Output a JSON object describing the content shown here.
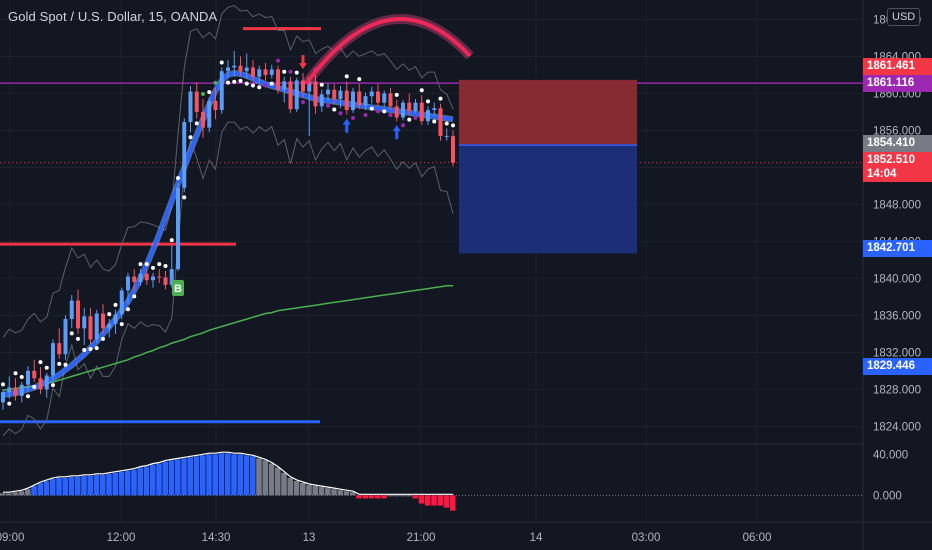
{
  "header": {
    "symbol_title": "Gold Spot / U.S. Dollar, 15, OANDA",
    "currency": "USD"
  },
  "colors": {
    "background": "#131722",
    "grid": "#1e222d",
    "axis_text": "#b2b5be",
    "up_candle": "#5b9cf6",
    "down_candle": "#f7525f",
    "band_line": "#5d606b",
    "ema_fast": "#2962ff",
    "ema_slow": "#4caf50",
    "support_line": "#2962ff",
    "resistance_line": "#f23645",
    "level_purple": "#9c27b0",
    "current_price": "#f23645",
    "stop_zone": "#8a2b32",
    "target_zone": "#1c2f7c",
    "entry_line": "#2962ff",
    "buy_signal": "#4caf50",
    "arrow_up": "#2962ff",
    "arrow_down": "#f23645",
    "histogram_up": "#2962ff",
    "histogram_gray": "#787b86",
    "histogram_down": "#ff1744"
  },
  "price_tags": [
    {
      "text": "1861.461",
      "color": "#f23645"
    },
    {
      "text": "1861.116",
      "color": "#9c27b0"
    },
    {
      "text": "1854.410",
      "color": "#787b86"
    },
    {
      "text": "1852.510",
      "sub": "14:04",
      "color": "#f23645"
    },
    {
      "text": "1842.701",
      "color": "#2962ff"
    },
    {
      "text": "1829.446",
      "color": "#2962ff"
    }
  ],
  "chart_data": [
    {
      "type": "candlestick",
      "title": "Gold Spot / U.S. Dollar, 15, OANDA",
      "y_ticks": [
        "1824.000",
        "1828.000",
        "1832.000",
        "1836.000",
        "1840.000",
        "1844.000",
        "1848.000",
        "1852.000",
        "1856.000",
        "1860.000",
        "1864.000",
        "1868.000"
      ],
      "x_ticks": [
        "09:00",
        "12:00",
        "14:30",
        "13",
        "21:00",
        "14",
        "03:00",
        "06:00"
      ],
      "ylim": [
        1822.2,
        1870.1
      ],
      "levels": {
        "resistance_upper": 1867.0,
        "resistance_lower": 1843.7,
        "support": 1824.5,
        "purple": 1861.116,
        "current": 1852.51
      },
      "position": {
        "entry": 1854.41,
        "stop": 1861.461,
        "target": 1842.701
      },
      "signal_label": "B",
      "candles": [
        [
          1826.6,
          1828.0,
          1825.8,
          1827.7
        ],
        [
          1827.7,
          1829.4,
          1827.0,
          1828.2
        ],
        [
          1828.2,
          1829.2,
          1826.8,
          1827.3
        ],
        [
          1827.3,
          1828.8,
          1826.6,
          1828.5
        ],
        [
          1828.5,
          1830.5,
          1827.8,
          1830.0
        ],
        [
          1830.0,
          1831.2,
          1828.8,
          1829.2
        ],
        [
          1829.2,
          1830.4,
          1827.5,
          1828.0
        ],
        [
          1828.0,
          1829.8,
          1827.1,
          1829.5
        ],
        [
          1829.5,
          1833.4,
          1829.0,
          1833.0
        ],
        [
          1833.0,
          1834.6,
          1831.3,
          1831.8
        ],
        [
          1831.8,
          1836.0,
          1831.2,
          1835.6
        ],
        [
          1835.6,
          1838.2,
          1834.6,
          1837.6
        ],
        [
          1837.6,
          1838.8,
          1834.0,
          1834.6
        ],
        [
          1834.6,
          1836.8,
          1832.8,
          1835.9
        ],
        [
          1835.9,
          1836.8,
          1832.9,
          1833.4
        ],
        [
          1833.4,
          1836.6,
          1833.0,
          1836.2
        ],
        [
          1836.2,
          1837.2,
          1834.0,
          1834.6
        ],
        [
          1834.6,
          1835.6,
          1833.6,
          1835.1
        ],
        [
          1835.1,
          1836.6,
          1834.0,
          1836.1
        ],
        [
          1836.1,
          1839.0,
          1835.6,
          1838.7
        ],
        [
          1838.7,
          1840.6,
          1837.2,
          1840.2
        ],
        [
          1840.2,
          1841.0,
          1838.6,
          1839.6
        ],
        [
          1839.6,
          1841.0,
          1839.2,
          1840.5
        ],
        [
          1840.5,
          1841.0,
          1839.3,
          1839.8
        ],
        [
          1839.8,
          1840.6,
          1839.0,
          1840.2
        ],
        [
          1840.2,
          1841.0,
          1839.5,
          1840.1
        ],
        [
          1840.1,
          1840.8,
          1838.8,
          1839.3
        ],
        [
          1839.3,
          1843.6,
          1839.0,
          1841.0
        ],
        [
          1841.0,
          1850.3,
          1840.8,
          1849.8
        ],
        [
          1849.8,
          1857.3,
          1849.3,
          1856.9
        ],
        [
          1856.9,
          1860.8,
          1855.8,
          1860.2
        ],
        [
          1860.2,
          1861.2,
          1857.3,
          1858.0
        ],
        [
          1858.0,
          1859.4,
          1855.2,
          1856.3
        ],
        [
          1856.3,
          1859.6,
          1855.8,
          1859.2
        ],
        [
          1859.2,
          1860.6,
          1857.2,
          1858.2
        ],
        [
          1858.2,
          1862.8,
          1857.8,
          1862.4
        ],
        [
          1862.4,
          1863.6,
          1861.7,
          1862.8
        ],
        [
          1862.8,
          1864.6,
          1861.8,
          1863.0
        ],
        [
          1863.0,
          1864.0,
          1861.9,
          1862.4
        ],
        [
          1862.4,
          1864.3,
          1861.6,
          1862.8
        ],
        [
          1862.8,
          1863.6,
          1861.4,
          1861.8
        ],
        [
          1861.8,
          1863.0,
          1861.2,
          1862.6
        ],
        [
          1862.6,
          1863.3,
          1861.4,
          1862.0
        ],
        [
          1862.0,
          1863.1,
          1861.6,
          1862.6
        ],
        [
          1862.6,
          1863.0,
          1860.0,
          1860.4
        ],
        [
          1860.4,
          1861.8,
          1859.0,
          1861.3
        ],
        [
          1861.3,
          1861.8,
          1857.9,
          1858.3
        ],
        [
          1858.3,
          1861.7,
          1858.0,
          1861.4
        ],
        [
          1861.4,
          1862.2,
          1859.6,
          1860.2
        ],
        [
          1860.2,
          1861.0,
          1855.4,
          1861.3
        ],
        [
          1861.3,
          1862.0,
          1857.8,
          1858.6
        ],
        [
          1858.6,
          1860.4,
          1858.0,
          1859.9
        ],
        [
          1859.9,
          1861.1,
          1859.2,
          1860.4
        ],
        [
          1860.4,
          1861.0,
          1858.8,
          1859.4
        ],
        [
          1859.4,
          1860.8,
          1858.4,
          1860.3
        ],
        [
          1860.3,
          1861.3,
          1857.7,
          1858.2
        ],
        [
          1858.2,
          1860.6,
          1857.9,
          1860.2
        ],
        [
          1860.2,
          1861.0,
          1858.3,
          1858.7
        ],
        [
          1858.7,
          1860.1,
          1858.2,
          1859.7
        ],
        [
          1859.7,
          1860.7,
          1858.9,
          1860.2
        ],
        [
          1860.2,
          1861.0,
          1858.6,
          1859.0
        ],
        [
          1859.0,
          1860.3,
          1858.6,
          1860.0
        ],
        [
          1860.0,
          1860.6,
          1858.2,
          1858.6
        ],
        [
          1858.6,
          1859.3,
          1857.0,
          1857.4
        ],
        [
          1857.4,
          1859.3,
          1857.1,
          1859.0
        ],
        [
          1859.0,
          1860.0,
          1857.7,
          1858.1
        ],
        [
          1858.1,
          1859.4,
          1857.9,
          1859.0
        ],
        [
          1859.0,
          1859.8,
          1856.6,
          1857.0
        ],
        [
          1857.0,
          1858.6,
          1856.6,
          1858.2
        ],
        [
          1858.2,
          1859.0,
          1857.5,
          1858.4
        ],
        [
          1858.4,
          1858.9,
          1854.9,
          1855.4
        ],
        [
          1855.4,
          1856.2,
          1854.9,
          1855.4
        ],
        [
          1855.4,
          1856.0,
          1852.1,
          1852.5
        ]
      ],
      "band_upper": [
        1833.6,
        1834.5,
        1834.1,
        1834.4,
        1835.6,
        1836.2,
        1835.3,
        1835.8,
        1838.4,
        1838.7,
        1841.2,
        1843.3,
        1842.2,
        1842.6,
        1841.2,
        1842.0,
        1841.0,
        1840.8,
        1841.5,
        1843.7,
        1845.5,
        1845.6,
        1846.1,
        1846.0,
        1845.8,
        1845.5,
        1845.2,
        1847.8,
        1855.6,
        1862.8,
        1866.7,
        1867.0,
        1866.0,
        1866.6,
        1865.9,
        1868.6,
        1869.3,
        1869.5,
        1868.9,
        1869.0,
        1868.3,
        1868.6,
        1868.2,
        1868.3,
        1866.8,
        1866.8,
        1864.7,
        1866.2,
        1865.6,
        1865.8,
        1864.3,
        1864.8,
        1865.1,
        1864.5,
        1864.9,
        1863.9,
        1864.6,
        1864.0,
        1864.3,
        1864.6,
        1864.1,
        1864.3,
        1863.5,
        1862.6,
        1863.2,
        1862.5,
        1862.9,
        1861.7,
        1862.3,
        1862.3,
        1860.4,
        1859.9,
        1858.3
      ],
      "band_lower": [
        1823.0,
        1823.7,
        1823.2,
        1823.7,
        1825.2,
        1824.8,
        1823.7,
        1824.7,
        1828.1,
        1827.2,
        1830.6,
        1832.8,
        1830.1,
        1830.8,
        1829.2,
        1830.5,
        1829.4,
        1829.4,
        1830.5,
        1833.4,
        1835.1,
        1834.6,
        1835.3,
        1834.8,
        1835.0,
        1834.9,
        1834.2,
        1835.7,
        1843.7,
        1851.7,
        1854.9,
        1853.0,
        1850.8,
        1852.8,
        1851.8,
        1855.8,
        1856.9,
        1856.9,
        1856.1,
        1856.4,
        1855.7,
        1856.4,
        1855.9,
        1856.4,
        1854.4,
        1855.0,
        1852.4,
        1855.1,
        1854.2,
        1854.9,
        1852.8,
        1854.0,
        1854.7,
        1853.8,
        1854.6,
        1852.8,
        1854.1,
        1853.1,
        1853.8,
        1854.2,
        1853.2,
        1853.9,
        1852.9,
        1851.8,
        1852.6,
        1851.9,
        1852.5,
        1851.0,
        1851.8,
        1852.1,
        1849.5,
        1849.4,
        1847.0
      ],
      "ema_fast": [
        1827.4,
        1827.5,
        1827.6,
        1827.8,
        1828.0,
        1828.2,
        1828.5,
        1828.8,
        1829.2,
        1829.6,
        1830.1,
        1830.6,
        1831.2,
        1831.8,
        1832.5,
        1833.2,
        1834.0,
        1834.8,
        1835.6,
        1836.5,
        1837.5,
        1838.7,
        1840.0,
        1841.5,
        1843.1,
        1844.8,
        1846.6,
        1848.4,
        1850.2,
        1852.0,
        1853.8,
        1855.5,
        1857.2,
        1858.8,
        1860.3,
        1861.4,
        1862.0,
        1862.2,
        1862.1,
        1861.9,
        1861.6,
        1861.3,
        1861.0,
        1860.8,
        1860.6,
        1860.4,
        1860.2,
        1860.0,
        1859.8,
        1859.6,
        1859.4,
        1859.3,
        1859.2,
        1859.1,
        1859.0,
        1858.9,
        1858.8,
        1858.7,
        1858.6,
        1858.5,
        1858.4,
        1858.3,
        1858.2,
        1858.1,
        1858.0,
        1857.9,
        1857.8,
        1857.7,
        1857.6,
        1857.5,
        1857.4,
        1857.3,
        1857.2
      ],
      "ema_slow": [
        1827.9,
        1828.0,
        1828.1,
        1828.2,
        1828.3,
        1828.4,
        1828.5,
        1828.7,
        1828.8,
        1829.0,
        1829.2,
        1829.4,
        1829.6,
        1829.8,
        1830.0,
        1830.2,
        1830.4,
        1830.6,
        1830.8,
        1831.0,
        1831.2,
        1831.5,
        1831.7,
        1832.0,
        1832.2,
        1832.5,
        1832.7,
        1833.0,
        1833.2,
        1833.4,
        1833.7,
        1833.9,
        1834.1,
        1834.4,
        1834.6,
        1834.8,
        1835.0,
        1835.2,
        1835.4,
        1835.6,
        1835.8,
        1836.0,
        1836.2,
        1836.3,
        1836.5,
        1836.6,
        1836.7,
        1836.8,
        1836.9,
        1837.0,
        1837.1,
        1837.2,
        1837.3,
        1837.4,
        1837.5,
        1837.6,
        1837.7,
        1837.8,
        1837.9,
        1838.0,
        1838.1,
        1838.2,
        1838.3,
        1838.4,
        1838.5,
        1838.6,
        1838.7,
        1838.8,
        1838.9,
        1839.0,
        1839.1,
        1839.2,
        1839.2
      ],
      "arrows_up": [
        55,
        63
      ],
      "arrows_down": [
        48
      ],
      "buy_signal_index": 28
    },
    {
      "type": "histogram",
      "y_ticks": [
        "40.000",
        "0.000"
      ],
      "ylim": [
        -26,
        50
      ],
      "values": [
        2,
        2,
        3,
        4,
        6,
        9,
        12,
        14,
        16,
        17,
        17,
        18,
        18,
        19,
        19,
        20,
        20,
        21,
        22,
        23,
        24,
        25,
        27,
        28,
        30,
        31,
        33,
        34,
        35,
        36,
        37,
        38,
        39,
        40,
        40,
        41,
        41,
        40,
        40,
        39,
        38,
        36,
        34,
        31,
        27,
        22,
        17,
        14,
        12,
        10,
        9,
        8,
        7,
        6,
        5,
        4,
        3,
        -3,
        -3,
        -3,
        -3,
        -3,
        0,
        0,
        0,
        0,
        -3,
        -8,
        -10,
        -10,
        -10,
        -12,
        -15
      ],
      "colors": [
        "gray",
        "gray",
        "gray",
        "gray",
        "gray",
        "up",
        "up",
        "up",
        "up",
        "up",
        "up",
        "up",
        "up",
        "up",
        "up",
        "up",
        "up",
        "up",
        "up",
        "up",
        "up",
        "up",
        "up",
        "up",
        "up",
        "up",
        "up",
        "up",
        "up",
        "up",
        "up",
        "up",
        "up",
        "up",
        "up",
        "up",
        "up",
        "up",
        "up",
        "up",
        "up",
        "gray",
        "gray",
        "gray",
        "gray",
        "gray",
        "gray",
        "gray",
        "gray",
        "gray",
        "gray",
        "gray",
        "gray",
        "gray",
        "gray",
        "gray",
        "gray",
        "down",
        "down",
        "down",
        "down",
        "down",
        "gray",
        "gray",
        "gray",
        "gray",
        "down",
        "down",
        "down",
        "down",
        "down",
        "down",
        "down"
      ]
    }
  ]
}
